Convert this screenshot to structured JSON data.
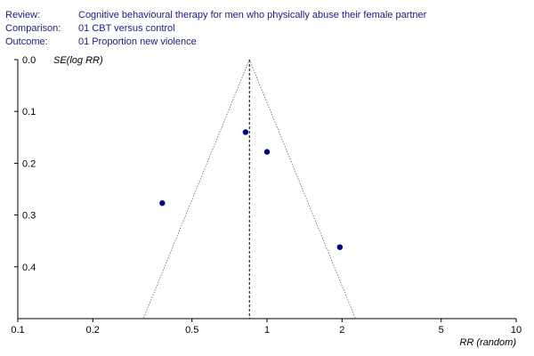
{
  "header": {
    "review_label": "Review:",
    "review_value": "Cognitive behavioural therapy for men who physically abuse their female partner",
    "comparison_label": "Comparison:",
    "comparison_value": "01 CBT versus control",
    "outcome_label": "Outcome:",
    "outcome_value": "01 Proportion new violence"
  },
  "chart_data": {
    "type": "scatter",
    "subtype": "funnel-plot",
    "xlabel": "RR (random)",
    "ylabel": "SE(log RR)",
    "x_scale": "log",
    "xlim": [
      0.1,
      10
    ],
    "ylim": [
      0.0,
      0.5
    ],
    "y_inverted": true,
    "x_ticks": [
      0.1,
      0.2,
      0.5,
      1,
      2,
      5,
      10
    ],
    "x_tick_labels": [
      "0.1",
      "0.2",
      "0.5",
      "1",
      "2",
      "5",
      "10"
    ],
    "y_ticks": [
      0.0,
      0.1,
      0.2,
      0.3,
      0.4
    ],
    "y_tick_labels": [
      "0.0",
      "0.1",
      "0.2",
      "0.3",
      "0.4"
    ],
    "pooled_rr": 0.85,
    "funnel_lines": "dotted",
    "point_color": "#00008b",
    "points": [
      {
        "x": 0.82,
        "y": 0.14
      },
      {
        "x": 1.0,
        "y": 0.178
      },
      {
        "x": 0.38,
        "y": 0.277
      },
      {
        "x": 1.96,
        "y": 0.362
      }
    ],
    "grid": false
  }
}
